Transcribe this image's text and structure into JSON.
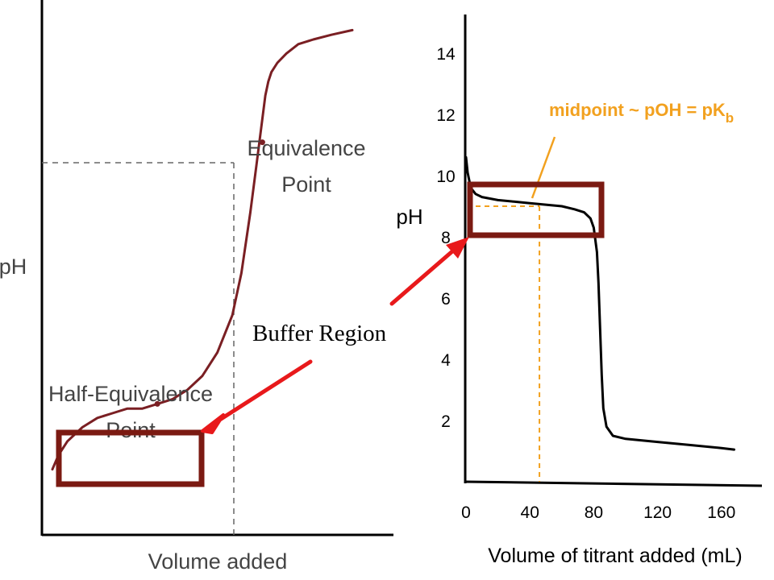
{
  "colors": {
    "left_curve": "#7a1f23",
    "right_curve": "#000000",
    "box": "#7b1a12",
    "arrow": "#e8191b",
    "midpoint": "#f2a11f",
    "guide": "#666666"
  },
  "chart_data": [
    {
      "type": "line",
      "title": "",
      "xlabel": "Volume added",
      "ylabel": "pH",
      "x_ticks": [],
      "y_ticks": [],
      "grid": false,
      "annotations": {
        "equivalence_line1": "Equivalence",
        "equivalence_line2": "Point",
        "half_line1": "Half-Equivalence",
        "half_line2": "Point"
      },
      "series": [
        {
          "x": [
            0,
            0.02,
            0.05,
            0.1,
            0.15,
            0.2,
            0.25,
            0.3,
            0.35,
            0.4,
            0.45,
            0.5,
            0.55,
            0.6,
            0.63,
            0.66,
            0.68,
            0.7,
            0.71,
            0.72,
            0.73,
            0.75,
            0.78,
            0.82,
            0.87,
            0.93,
            1.0
          ],
          "y": [
            0.03,
            0.06,
            0.09,
            0.12,
            0.14,
            0.15,
            0.16,
            0.16,
            0.17,
            0.18,
            0.2,
            0.23,
            0.28,
            0.36,
            0.45,
            0.58,
            0.68,
            0.78,
            0.83,
            0.86,
            0.88,
            0.9,
            0.92,
            0.94,
            0.95,
            0.96,
            0.97
          ]
        }
      ],
      "markers": [
        {
          "x": 0.7,
          "y": 0.73
        },
        {
          "x": 0.35,
          "y": 0.17
        }
      ]
    },
    {
      "type": "line",
      "title": "",
      "xlabel": "Volume of titrant added (mL)",
      "ylabel": "pH",
      "x_ticks": [
        0,
        40,
        80,
        120,
        160
      ],
      "y_ticks": [
        2,
        4,
        6,
        8,
        10,
        12,
        14
      ],
      "grid": false,
      "annotation": {
        "text": "midpoint ~ pOH = pK",
        "subscript": "b"
      },
      "midpoint": {
        "x": 46,
        "y": 9.0
      },
      "series": [
        {
          "x": [
            0,
            1,
            3,
            6,
            10,
            20,
            30,
            40,
            50,
            60,
            68,
            74,
            78,
            80,
            82,
            83,
            84,
            85,
            86,
            88,
            92,
            100,
            120,
            140,
            160,
            168
          ],
          "y": [
            10.6,
            10.1,
            9.6,
            9.4,
            9.3,
            9.2,
            9.15,
            9.1,
            9.05,
            9.0,
            8.9,
            8.8,
            8.6,
            8.3,
            7.5,
            6.5,
            5.0,
            3.5,
            2.4,
            1.8,
            1.5,
            1.4,
            1.3,
            1.2,
            1.1,
            1.05
          ]
        }
      ]
    }
  ],
  "callout": {
    "label": "Buffer Region"
  }
}
